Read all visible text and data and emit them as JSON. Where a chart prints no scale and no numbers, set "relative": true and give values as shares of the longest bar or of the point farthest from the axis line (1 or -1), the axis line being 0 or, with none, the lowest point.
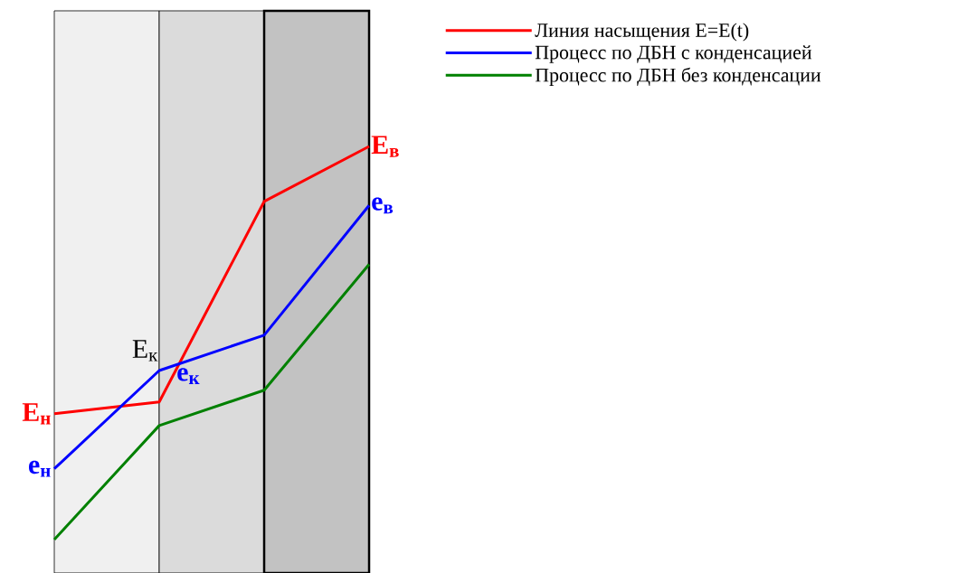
{
  "chart_data": {
    "type": "line",
    "relative": true,
    "categories": [
      null,
      null,
      null,
      null
    ],
    "series": [
      {
        "name": "Линия насыщения E=E(t)",
        "color": "#ff0000",
        "values": [
          0.32,
          0.35,
          0.86,
          1.0
        ]
      },
      {
        "name": "Процесс по ДБН с конденсацией",
        "color": "#0000ff",
        "values": [
          0.18,
          0.43,
          0.52,
          0.85
        ]
      },
      {
        "name": "Процесс по ДБН без конденсации",
        "color": "#008000",
        "values": [
          0.0,
          0.29,
          0.38,
          0.7
        ]
      }
    ],
    "annotations": [
      "E$_{н}$",
      "e$_{н}$",
      "E$_{к}$",
      "e$_{к}$",
      "E$_{в}$",
      "e$_{в}$"
    ],
    "legend": "top right",
    "marker": "none",
    "line_style": "solid"
  }
}
